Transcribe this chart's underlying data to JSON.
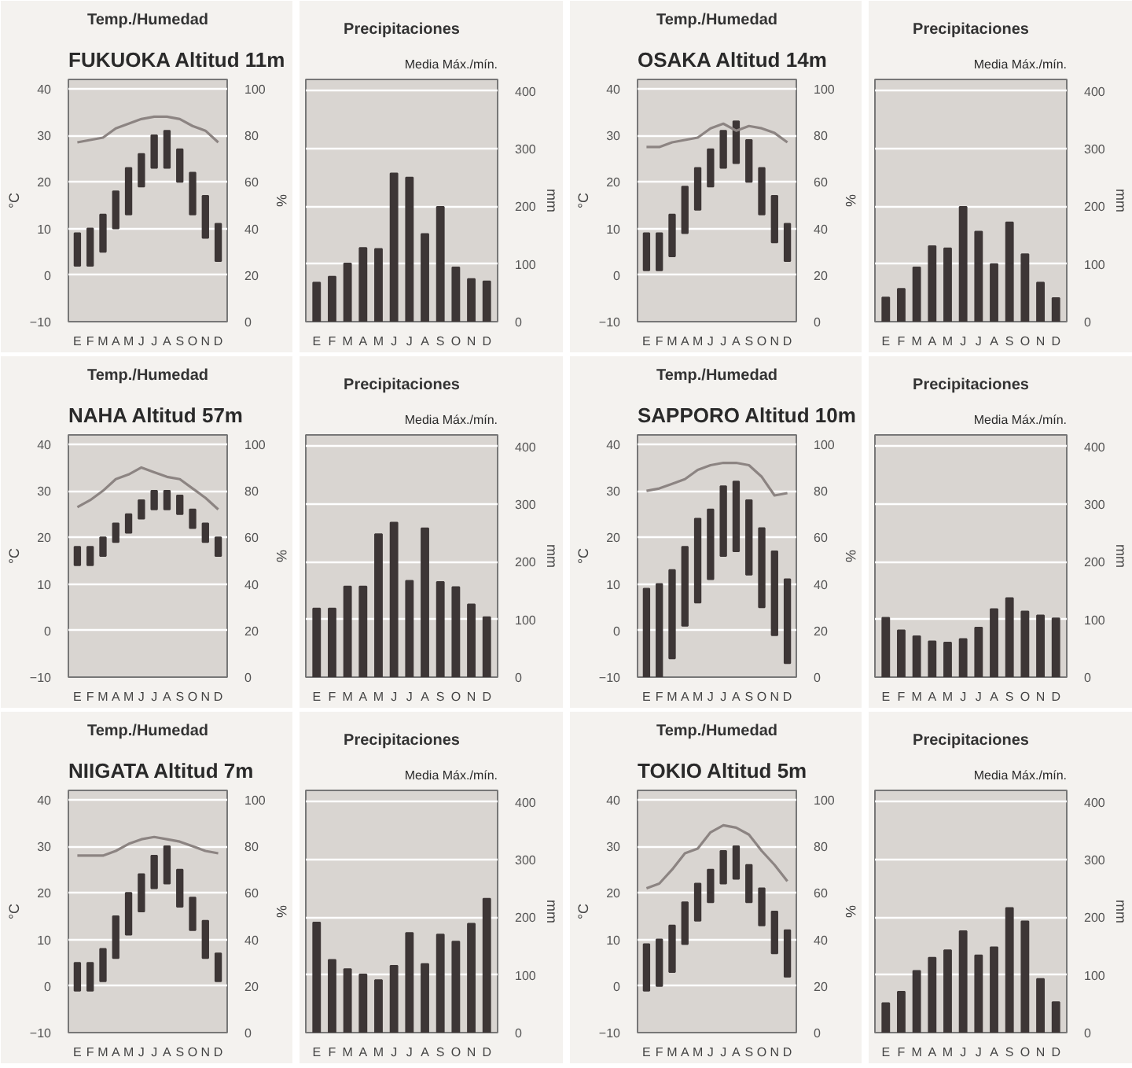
{
  "chart_data": [
    {
      "type": "bar",
      "title": "FUKUOKA Altitud 11m",
      "subtitle": "Temp./Humedad",
      "ylabel": "°C",
      "y2label": "%",
      "categories": [
        "E",
        "F",
        "M",
        "A",
        "M",
        "J",
        "J",
        "A",
        "S",
        "O",
        "N",
        "D"
      ],
      "series": [
        {
          "type": "bar",
          "color": "#3d3636",
          "base": [
            2,
            2,
            5,
            10,
            13,
            19,
            23,
            23,
            20,
            13,
            8,
            3
          ],
          "values": [
            7,
            8,
            8,
            8,
            10,
            7,
            7,
            8,
            7,
            9,
            9,
            8
          ]
        },
        {
          "type": "line",
          "axis": "y2",
          "color": "#8c8482",
          "values": [
            77,
            78,
            79,
            83,
            85,
            87,
            88,
            88,
            87,
            84,
            82,
            77
          ]
        }
      ],
      "ylim": [
        -10,
        42
      ],
      "yticks": [
        -10,
        0,
        10,
        20,
        30,
        40
      ],
      "y2lim": [
        0,
        104
      ],
      "y2ticks": [
        0,
        20,
        40,
        60,
        80,
        100
      ],
      "grid": "y"
    },
    {
      "type": "bar",
      "title": "Precipitaciones",
      "annotations": [
        "Media Máx./mín."
      ],
      "ylabel": "mm",
      "categories": [
        "E",
        "F",
        "M",
        "A",
        "M",
        "J",
        "J",
        "A",
        "S",
        "O",
        "N",
        "D"
      ],
      "values": [
        68,
        78,
        101,
        128,
        126,
        257,
        250,
        152,
        199,
        94,
        74,
        70
      ],
      "color": "#3d3636",
      "ylim": [
        0,
        420
      ],
      "yticks": [
        0,
        100,
        200,
        300,
        400
      ],
      "grid": "y"
    },
    {
      "type": "bar",
      "title": "OSAKA Altitud 14m",
      "subtitle": "Temp./Humedad",
      "ylabel": "°C",
      "y2label": "%",
      "categories": [
        "E",
        "F",
        "M",
        "A",
        "M",
        "J",
        "J",
        "A",
        "S",
        "O",
        "N",
        "D"
      ],
      "series": [
        {
          "type": "bar",
          "color": "#3d3636",
          "base": [
            1,
            1,
            4,
            9,
            14,
            19,
            23,
            24,
            20,
            13,
            7,
            3
          ],
          "values": [
            8,
            8,
            9,
            10,
            9,
            8,
            8,
            9,
            9,
            10,
            10,
            8
          ]
        },
        {
          "type": "line",
          "axis": "y2",
          "color": "#8c8482",
          "values": [
            75,
            75,
            77,
            78,
            79,
            83,
            85,
            82,
            84,
            83,
            81,
            77
          ]
        }
      ],
      "ylim": [
        -10,
        42
      ],
      "yticks": [
        -10,
        0,
        10,
        20,
        30,
        40
      ],
      "y2lim": [
        0,
        104
      ],
      "y2ticks": [
        0,
        20,
        40,
        60,
        80,
        100
      ],
      "grid": "y"
    },
    {
      "type": "bar",
      "title": "Precipitaciones",
      "annotations": [
        "Media Máx./mín."
      ],
      "ylabel": "mm",
      "categories": [
        "E",
        "F",
        "M",
        "A",
        "M",
        "J",
        "J",
        "A",
        "S",
        "O",
        "N",
        "D"
      ],
      "values": [
        42,
        57,
        94,
        131,
        127,
        199,
        156,
        100,
        172,
        117,
        68,
        41
      ],
      "color": "#3d3636",
      "ylim": [
        0,
        420
      ],
      "yticks": [
        0,
        100,
        200,
        300,
        400
      ],
      "grid": "y"
    },
    {
      "type": "bar",
      "title": "NAHA Altitud 57m",
      "subtitle": "Temp./Humedad",
      "ylabel": "°C",
      "y2label": "%",
      "categories": [
        "E",
        "F",
        "M",
        "A",
        "M",
        "J",
        "J",
        "A",
        "S",
        "O",
        "N",
        "D"
      ],
      "series": [
        {
          "type": "bar",
          "color": "#3d3636",
          "base": [
            14,
            14,
            16,
            19,
            21,
            24,
            26,
            26,
            25,
            22,
            19,
            16
          ],
          "values": [
            4,
            4,
            4,
            4,
            4,
            4,
            4,
            4,
            4,
            4,
            4,
            4
          ]
        },
        {
          "type": "line",
          "axis": "y2",
          "color": "#8c8482",
          "values": [
            73,
            76,
            80,
            85,
            87,
            90,
            88,
            86,
            85,
            81,
            77,
            72
          ]
        }
      ],
      "ylim": [
        -10,
        42
      ],
      "yticks": [
        -10,
        0,
        10,
        20,
        30,
        40
      ],
      "y2lim": [
        0,
        104
      ],
      "y2ticks": [
        0,
        20,
        40,
        60,
        80,
        100
      ],
      "grid": "y"
    },
    {
      "type": "bar",
      "title": "Precipitaciones",
      "annotations": [
        "Media Máx./mín."
      ],
      "ylabel": "mm",
      "categories": [
        "E",
        "F",
        "M",
        "A",
        "M",
        "J",
        "J",
        "A",
        "S",
        "O",
        "N",
        "D"
      ],
      "values": [
        119,
        119,
        157,
        157,
        248,
        268,
        167,
        258,
        165,
        156,
        126,
        104
      ],
      "color": "#3d3636",
      "ylim": [
        0,
        420
      ],
      "yticks": [
        0,
        100,
        200,
        300,
        400
      ],
      "grid": "y"
    },
    {
      "type": "bar",
      "title": "SAPPORO Altitud 10m",
      "subtitle": "Temp./Humedad",
      "ylabel": "°C",
      "y2label": "%",
      "categories": [
        "E",
        "F",
        "M",
        "A",
        "M",
        "J",
        "J",
        "A",
        "S",
        "O",
        "N",
        "D"
      ],
      "series": [
        {
          "type": "bar",
          "color": "#3d3636",
          "base": [
            -10,
            -10,
            -6,
            1,
            6,
            11,
            16,
            17,
            12,
            5,
            -1,
            -7
          ],
          "values": [
            19,
            20,
            19,
            17,
            18,
            15,
            15,
            15,
            16,
            17,
            18,
            18
          ]
        },
        {
          "type": "line",
          "axis": "y2",
          "color": "#8c8482",
          "values": [
            80,
            81,
            83,
            85,
            89,
            91,
            92,
            92,
            91,
            86,
            78,
            79
          ]
        }
      ],
      "ylim": [
        -10,
        42
      ],
      "yticks": [
        -10,
        0,
        10,
        20,
        30,
        40
      ],
      "y2lim": [
        0,
        104
      ],
      "y2ticks": [
        0,
        20,
        40,
        60,
        80,
        100
      ],
      "grid": "y"
    },
    {
      "type": "bar",
      "title": "Precipitaciones",
      "annotations": [
        "Media Máx./mín."
      ],
      "ylabel": "mm",
      "categories": [
        "E",
        "F",
        "M",
        "A",
        "M",
        "J",
        "J",
        "A",
        "S",
        "O",
        "N",
        "D"
      ],
      "values": [
        103,
        81,
        71,
        62,
        60,
        66,
        86,
        118,
        137,
        114,
        107,
        102
      ],
      "color": "#3d3636",
      "ylim": [
        0,
        420
      ],
      "yticks": [
        0,
        100,
        200,
        300,
        400
      ],
      "grid": "y"
    },
    {
      "type": "bar",
      "title": "NIIGATA Altitud 7m",
      "subtitle": "Temp./Humedad",
      "ylabel": "°C",
      "y2label": "%",
      "categories": [
        "E",
        "F",
        "M",
        "A",
        "M",
        "J",
        "J",
        "A",
        "S",
        "O",
        "N",
        "D"
      ],
      "series": [
        {
          "type": "bar",
          "color": "#3d3636",
          "base": [
            -1,
            -1,
            1,
            6,
            11,
            16,
            21,
            22,
            17,
            12,
            6,
            1
          ],
          "values": [
            6,
            6,
            7,
            9,
            9,
            8,
            7,
            8,
            8,
            7,
            8,
            6
          ]
        },
        {
          "type": "line",
          "axis": "y2",
          "color": "#8c8482",
          "values": [
            76,
            76,
            76,
            78,
            81,
            83,
            84,
            83,
            82,
            80,
            78,
            77
          ]
        }
      ],
      "ylim": [
        -10,
        42
      ],
      "yticks": [
        -10,
        0,
        10,
        20,
        30,
        40
      ],
      "y2lim": [
        0,
        104
      ],
      "y2ticks": [
        0,
        20,
        40,
        60,
        80,
        100
      ],
      "grid": "y"
    },
    {
      "type": "bar",
      "title": "Precipitaciones",
      "annotations": [
        "Media Máx./mín."
      ],
      "ylabel": "mm",
      "categories": [
        "E",
        "F",
        "M",
        "A",
        "M",
        "J",
        "J",
        "A",
        "S",
        "O",
        "N",
        "D"
      ],
      "values": [
        191,
        126,
        110,
        101,
        91,
        116,
        173,
        119,
        170,
        158,
        189,
        232
      ],
      "color": "#3d3636",
      "ylim": [
        0,
        420
      ],
      "yticks": [
        0,
        100,
        200,
        300,
        400
      ],
      "grid": "y"
    },
    {
      "type": "bar",
      "title": "TOKIO Altitud 5m",
      "subtitle": "Temp./Humedad",
      "ylabel": "°C",
      "y2label": "%",
      "categories": [
        "E",
        "F",
        "M",
        "A",
        "M",
        "J",
        "J",
        "A",
        "S",
        "O",
        "N",
        "D"
      ],
      "series": [
        {
          "type": "bar",
          "color": "#3d3636",
          "base": [
            -1,
            0,
            3,
            9,
            14,
            18,
            22,
            23,
            18,
            13,
            7,
            2
          ],
          "values": [
            10,
            10,
            10,
            9,
            8,
            7,
            7,
            7,
            8,
            8,
            9,
            10
          ]
        },
        {
          "type": "line",
          "axis": "y2",
          "color": "#8c8482",
          "values": [
            62,
            64,
            70,
            77,
            79,
            86,
            89,
            88,
            85,
            78,
            72,
            65
          ]
        }
      ],
      "ylim": [
        -10,
        42
      ],
      "yticks": [
        -10,
        0,
        10,
        20,
        30,
        40
      ],
      "y2lim": [
        0,
        104
      ],
      "y2ticks": [
        0,
        20,
        40,
        60,
        80,
        100
      ],
      "grid": "y"
    },
    {
      "type": "bar",
      "title": "Precipitaciones",
      "annotations": [
        "Media Máx./mín."
      ],
      "ylabel": "mm",
      "categories": [
        "E",
        "F",
        "M",
        "A",
        "M",
        "J",
        "J",
        "A",
        "S",
        "O",
        "N",
        "D"
      ],
      "values": [
        51,
        71,
        107,
        130,
        143,
        176,
        134,
        148,
        216,
        193,
        93,
        53
      ],
      "color": "#3d3636",
      "ylim": [
        0,
        420
      ],
      "yticks": [
        0,
        100,
        200,
        300,
        400
      ],
      "grid": "y"
    }
  ]
}
